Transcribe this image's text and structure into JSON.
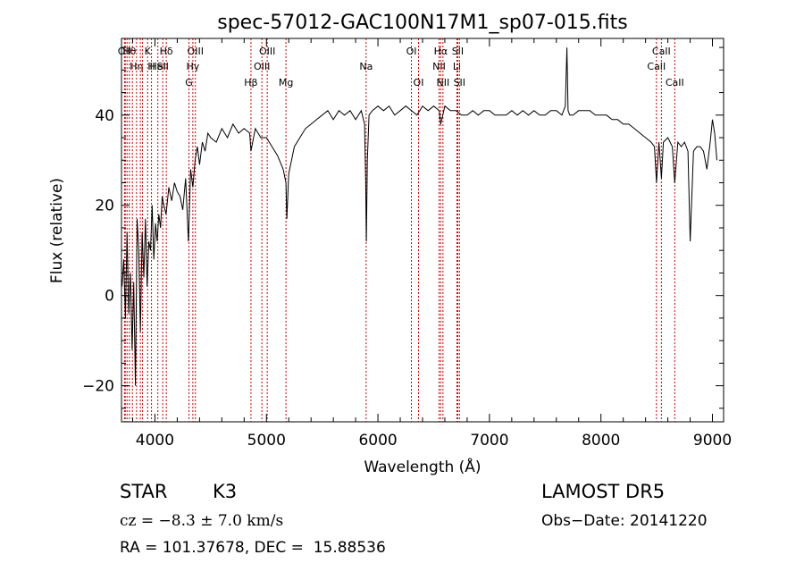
{
  "chart_data": {
    "type": "line",
    "title": "spec-57012-GAC100N17M1_sp07-015.fits",
    "xlabel": "Wavelength (Å)",
    "ylabel": "Flux (relative)",
    "xlim": [
      3700,
      9100
    ],
    "ylim": [
      -28,
      57
    ],
    "x_ticks": [
      4000,
      5000,
      6000,
      7000,
      8000,
      9000
    ],
    "y_ticks": [
      -20,
      0,
      20,
      40
    ],
    "grid": false,
    "line_color": "#000000",
    "marker_color": "#cc0000",
    "series": [
      {
        "x": [
          3705,
          3720,
          3735,
          3750,
          3765,
          3780,
          3795,
          3810,
          3825,
          3840,
          3855,
          3870,
          3885,
          3900,
          3915,
          3930,
          3945,
          3960,
          3975,
          3990,
          4005,
          4020,
          4035,
          4050,
          4065,
          4080,
          4100,
          4125,
          4150,
          4175,
          4200,
          4225,
          4250,
          4275,
          4300,
          4320,
          4340,
          4360,
          4380,
          4400,
          4425,
          4450,
          4475,
          4500,
          4550,
          4600,
          4650,
          4700,
          4750,
          4800,
          4850,
          4861,
          4900,
          4950,
          5000,
          5050,
          5100,
          5150,
          5175,
          5183,
          5200,
          5250,
          5300,
          5350,
          5400,
          5450,
          5500,
          5550,
          5600,
          5650,
          5700,
          5750,
          5800,
          5850,
          5880,
          5890,
          5896,
          5905,
          5920,
          5950,
          6000,
          6050,
          6100,
          6150,
          6200,
          6250,
          6300,
          6350,
          6400,
          6450,
          6500,
          6550,
          6563,
          6600,
          6650,
          6700,
          6750,
          6800,
          6850,
          6900,
          6950,
          7000,
          7050,
          7100,
          7150,
          7200,
          7250,
          7300,
          7350,
          7400,
          7450,
          7500,
          7550,
          7600,
          7650,
          7680,
          7695,
          7705,
          7720,
          7750,
          7800,
          7850,
          7900,
          7950,
          8000,
          8050,
          8100,
          8150,
          8200,
          8250,
          8300,
          8350,
          8400,
          8450,
          8480,
          8498,
          8520,
          8542,
          8560,
          8600,
          8640,
          8662,
          8690,
          8720,
          8750,
          8780,
          8800,
          8830,
          8860,
          8890,
          8920,
          8950,
          8980,
          9000,
          9020,
          9040
        ],
        "y": [
          2,
          8,
          -5,
          14,
          -4,
          5,
          -12,
          3,
          -20,
          17,
          10,
          -8,
          14,
          4,
          17,
          2,
          12,
          10,
          20,
          8,
          16,
          12,
          18,
          15,
          22,
          20,
          18,
          24,
          21,
          25,
          23,
          22,
          19,
          26,
          12,
          28,
          24,
          30,
          33,
          29,
          34,
          32,
          36,
          35,
          34,
          37,
          35,
          38,
          36,
          37,
          36,
          32,
          37,
          35,
          35,
          33,
          31,
          28,
          25,
          17,
          27,
          33,
          35,
          37,
          38,
          39,
          40,
          41,
          39,
          41,
          40,
          41,
          39,
          41,
          38,
          26,
          12,
          30,
          40,
          41,
          42,
          41,
          42,
          40,
          41,
          42,
          41,
          40,
          42,
          41,
          42,
          41,
          38,
          42,
          41,
          41,
          40,
          40,
          41,
          40,
          41,
          41,
          40,
          40,
          40,
          41,
          40,
          41,
          40,
          41,
          40,
          40,
          41,
          41,
          40,
          42,
          55,
          41,
          40,
          40,
          41,
          41,
          41,
          40,
          40,
          40,
          39,
          39,
          38,
          38,
          37,
          36,
          35,
          34,
          33,
          25,
          34,
          26,
          34,
          35,
          33,
          25,
          34,
          33,
          34,
          32,
          12,
          32,
          33,
          33,
          32,
          28,
          34,
          39,
          36,
          30
        ]
      }
    ],
    "line_markers": [
      {
        "x": 3727,
        "row": 0,
        "label": "OII"
      },
      {
        "x": 3734,
        "row": 0,
        "label": ""
      },
      {
        "x": 3750,
        "row": 0,
        "label": ""
      },
      {
        "x": 3771,
        "row": 0,
        "label": "Hθ"
      },
      {
        "x": 3798,
        "row": 0,
        "label": ""
      },
      {
        "x": 3835,
        "row": 1,
        "label": "Hη"
      },
      {
        "x": 3869,
        "row": 1,
        "label": ""
      },
      {
        "x": 3889,
        "row": 0,
        "label": ""
      },
      {
        "x": 3934,
        "row": 0,
        "label": "K"
      },
      {
        "x": 3969,
        "row": 1,
        "label": "H"
      },
      {
        "x": 4026,
        "row": 1,
        "label": "HeI"
      },
      {
        "x": 4070,
        "row": 1,
        "label": "SII"
      },
      {
        "x": 4102,
        "row": 0,
        "label": "Hδ"
      },
      {
        "x": 4305,
        "row": 2,
        "label": "G"
      },
      {
        "x": 4340,
        "row": 1,
        "label": "Hγ"
      },
      {
        "x": 4363,
        "row": 0,
        "label": "OIII"
      },
      {
        "x": 4861,
        "row": 2,
        "label": "Hβ"
      },
      {
        "x": 4959,
        "row": 1,
        "label": "OIII"
      },
      {
        "x": 5007,
        "row": 0,
        "label": "OIII"
      },
      {
        "x": 5175,
        "row": 2,
        "label": "Mg"
      },
      {
        "x": 5894,
        "row": 1,
        "label": "Na"
      },
      {
        "x": 6300,
        "row": 0,
        "label": "OI"
      },
      {
        "x": 6364,
        "row": 2,
        "label": "OI"
      },
      {
        "x": 6548,
        "row": 1,
        "label": "NII"
      },
      {
        "x": 6563,
        "row": 0,
        "label": "Hα"
      },
      {
        "x": 6583,
        "row": 2,
        "label": "NII"
      },
      {
        "x": 6708,
        "row": 1,
        "label": "Li"
      },
      {
        "x": 6716,
        "row": 0,
        "label": "SII"
      },
      {
        "x": 6731,
        "row": 2,
        "label": "SII"
      },
      {
        "x": 8498,
        "row": 1,
        "label": "CaII"
      },
      {
        "x": 8542,
        "row": 0,
        "label": "CaII"
      },
      {
        "x": 8662,
        "row": 2,
        "label": "CaII"
      }
    ]
  },
  "footer": {
    "object_class": "STAR",
    "subclass": "K3",
    "survey": "LAMOST DR5",
    "cz": "cz = −8.3 ± 7.0 km/s",
    "obs_date": "Obs−Date: 20141220",
    "ra_dec": "RA = 101.37678, DEC =  15.88536"
  }
}
